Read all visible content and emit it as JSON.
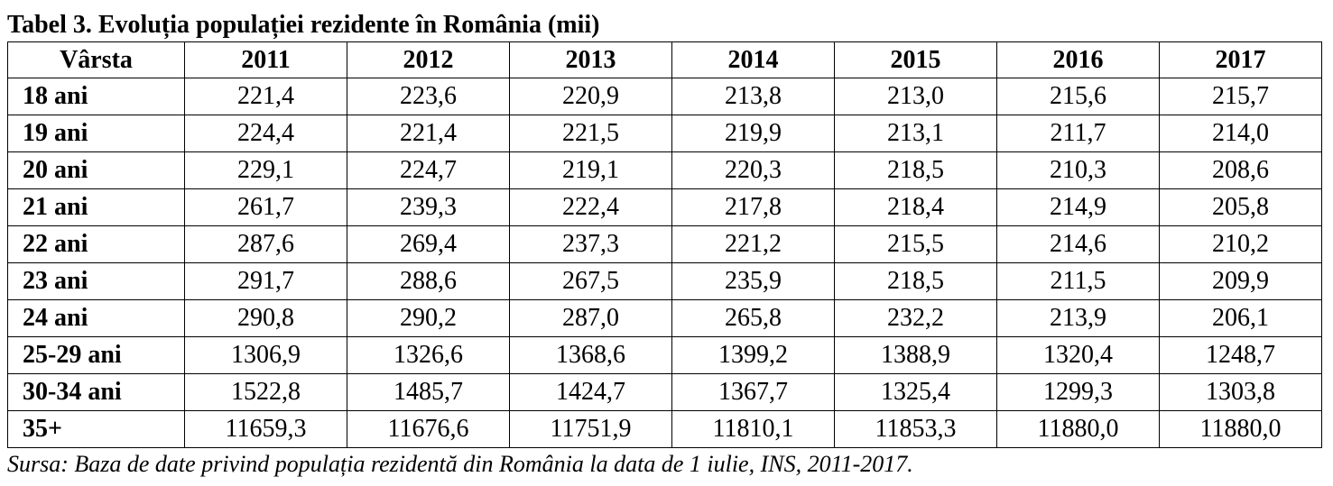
{
  "title": "Tabel 3. Evoluția populației rezidente în România (mii)",
  "header": [
    "Vârsta",
    "2011",
    "2012",
    "2013",
    "2014",
    "2015",
    "2016",
    "2017"
  ],
  "rows": [
    {
      "age": "18 ani",
      "values": [
        "221,4",
        "223,6",
        "220,9",
        "213,8",
        "213,0",
        "215,6",
        "215,7"
      ]
    },
    {
      "age": "19 ani",
      "values": [
        "224,4",
        "221,4",
        "221,5",
        "219,9",
        "213,1",
        "211,7",
        "214,0"
      ]
    },
    {
      "age": "20 ani",
      "values": [
        "229,1",
        "224,7",
        "219,1",
        "220,3",
        "218,5",
        "210,3",
        "208,6"
      ]
    },
    {
      "age": "21 ani",
      "values": [
        "261,7",
        "239,3",
        "222,4",
        "217,8",
        "218,4",
        "214,9",
        "205,8"
      ]
    },
    {
      "age": "22 ani",
      "values": [
        "287,6",
        "269,4",
        "237,3",
        "221,2",
        "215,5",
        "214,6",
        "210,2"
      ]
    },
    {
      "age": "23 ani",
      "values": [
        "291,7",
        "288,6",
        "267,5",
        "235,9",
        "218,5",
        "211,5",
        "209,9"
      ]
    },
    {
      "age": "24 ani",
      "values": [
        "290,8",
        "290,2",
        "287,0",
        "265,8",
        "232,2",
        "213,9",
        "206,1"
      ]
    },
    {
      "age": "25-29 ani",
      "values": [
        "1306,9",
        "1326,6",
        "1368,6",
        "1399,2",
        "1388,9",
        "1320,4",
        "1248,7"
      ]
    },
    {
      "age": "30-34 ani",
      "values": [
        "1522,8",
        "1485,7",
        "1424,7",
        "1367,7",
        "1325,4",
        "1299,3",
        "1303,8"
      ]
    },
    {
      "age": "35+",
      "values": [
        "11659,3",
        "11676,6",
        "11751,9",
        "11810,1",
        "11853,3",
        "11880,0",
        "11880,0"
      ]
    }
  ],
  "source": "Sursa: Baza de date privind populația rezidentă din România la data de 1 iulie, INS, 2011-2017."
}
